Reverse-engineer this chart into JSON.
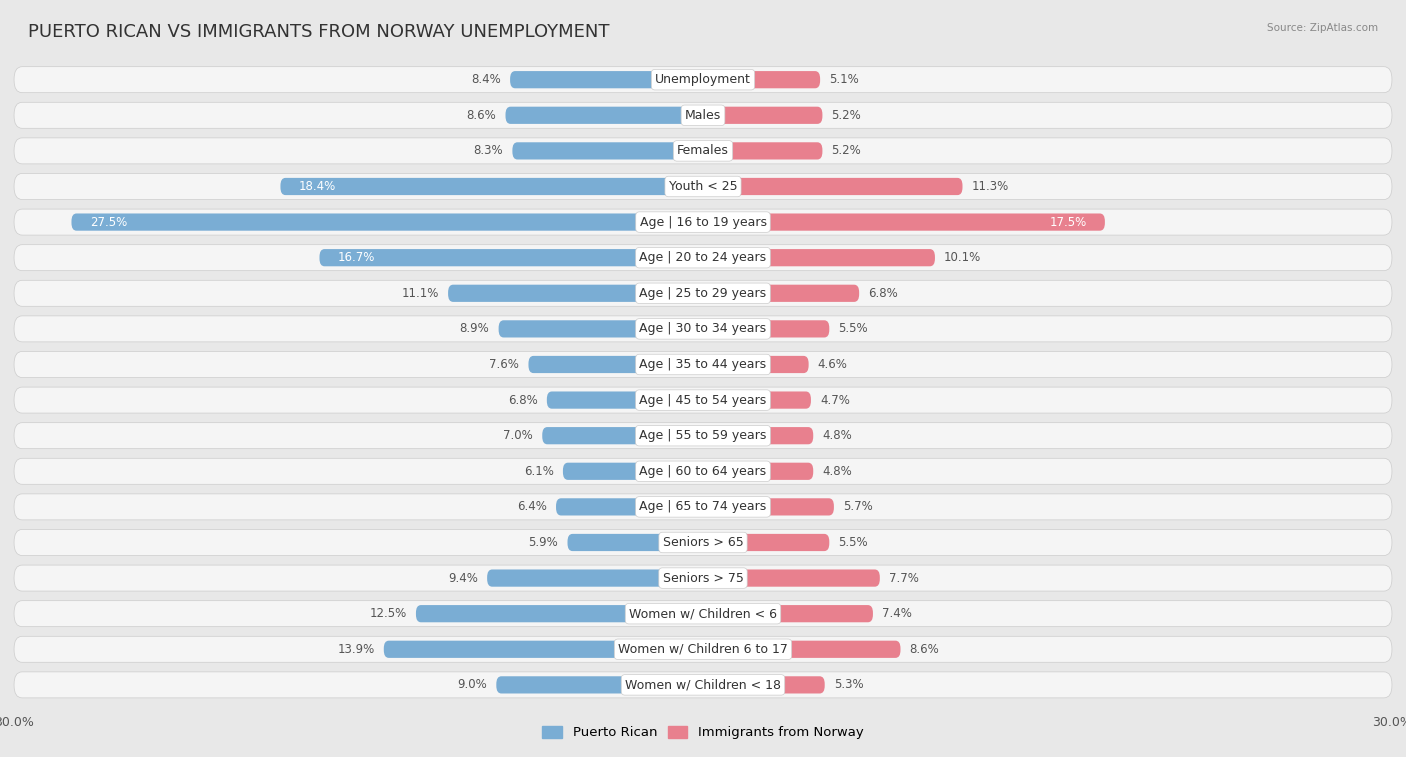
{
  "title": "PUERTO RICAN VS IMMIGRANTS FROM NORWAY UNEMPLOYMENT",
  "source": "Source: ZipAtlas.com",
  "categories": [
    "Unemployment",
    "Males",
    "Females",
    "Youth < 25",
    "Age | 16 to 19 years",
    "Age | 20 to 24 years",
    "Age | 25 to 29 years",
    "Age | 30 to 34 years",
    "Age | 35 to 44 years",
    "Age | 45 to 54 years",
    "Age | 55 to 59 years",
    "Age | 60 to 64 years",
    "Age | 65 to 74 years",
    "Seniors > 65",
    "Seniors > 75",
    "Women w/ Children < 6",
    "Women w/ Children 6 to 17",
    "Women w/ Children < 18"
  ],
  "left_values": [
    8.4,
    8.6,
    8.3,
    18.4,
    27.5,
    16.7,
    11.1,
    8.9,
    7.6,
    6.8,
    7.0,
    6.1,
    6.4,
    5.9,
    9.4,
    12.5,
    13.9,
    9.0
  ],
  "right_values": [
    5.1,
    5.2,
    5.2,
    11.3,
    17.5,
    10.1,
    6.8,
    5.5,
    4.6,
    4.7,
    4.8,
    4.8,
    5.7,
    5.5,
    7.7,
    7.4,
    8.6,
    5.3
  ],
  "left_color": "#7aadd4",
  "right_color": "#e8808e",
  "left_label": "Puerto Rican",
  "right_label": "Immigrants from Norway",
  "axis_max": 30.0,
  "bg_color": "#e8e8e8",
  "row_bg_color": "#f5f5f5",
  "title_fontsize": 13,
  "label_fontsize": 9,
  "tick_fontsize": 9,
  "value_fontsize": 8.5
}
